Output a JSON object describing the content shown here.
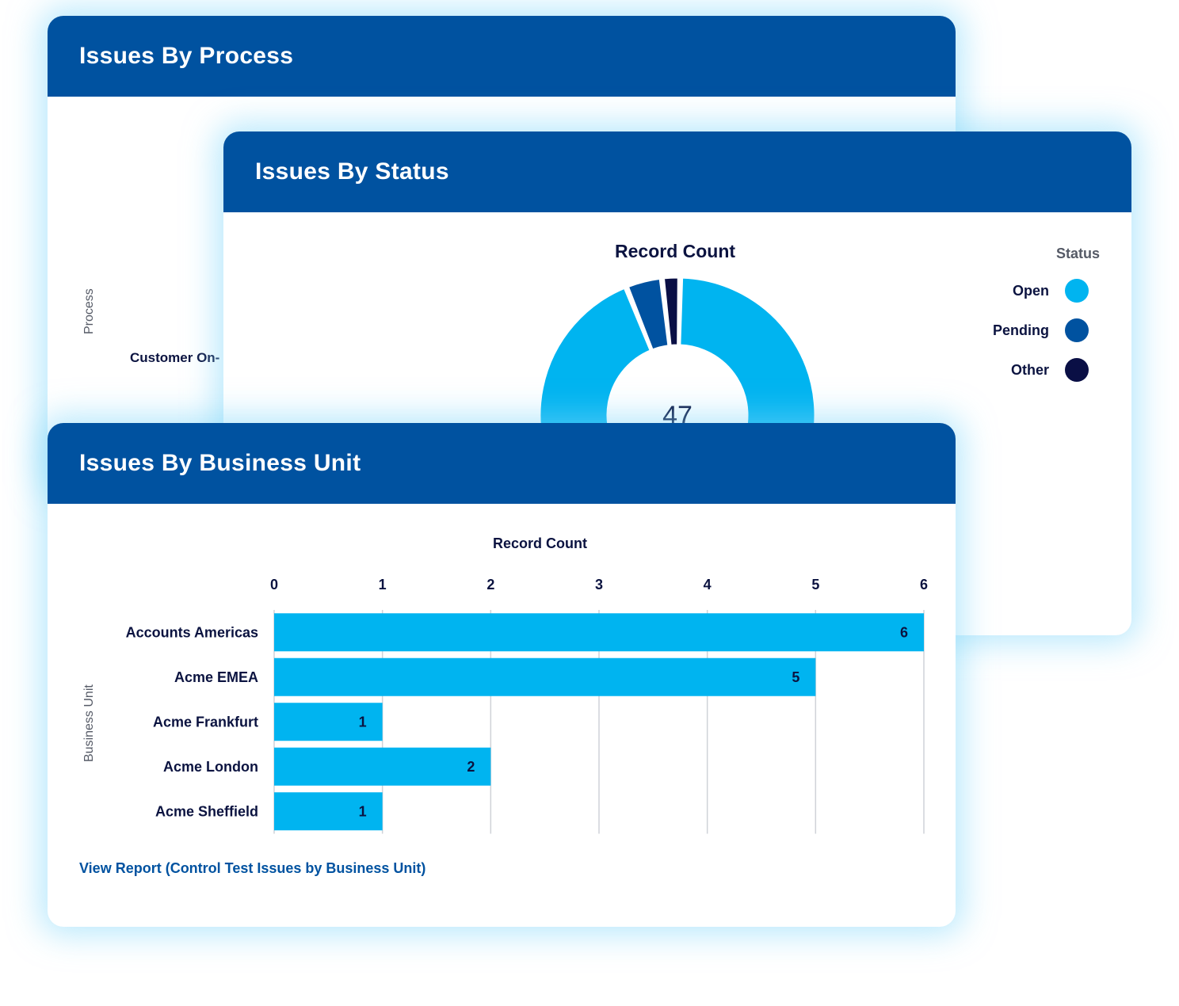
{
  "cards": {
    "process": {
      "title": "Issues By Process",
      "y_axis_label": "Process",
      "row_label": "Customer On-"
    },
    "status": {
      "title": "Issues By Status",
      "legend_title": "Status",
      "center_total": "47"
    },
    "business_unit": {
      "title": "Issues By Business Unit",
      "y_axis_label": "Business Unit",
      "report_link": "View Report (Control Test Issues by Business Unit)"
    }
  },
  "colors": {
    "header": "#0052a0",
    "open": "#00b4f0",
    "pending": "#0052a0",
    "other": "#0a0f45",
    "bar": "#00b4f0"
  },
  "chart_data": [
    {
      "type": "pie",
      "title": "Record Count",
      "total": 47,
      "series": [
        {
          "name": "Open",
          "value": 44
        },
        {
          "name": "Pending",
          "value": 2
        },
        {
          "name": "Other",
          "value": 1
        }
      ],
      "legend": "right"
    },
    {
      "type": "bar",
      "orientation": "horizontal",
      "xlabel": "Record Count",
      "ylabel": "Business Unit",
      "categories": [
        "Accounts Americas",
        "Acme EMEA",
        "Acme Frankfurt",
        "Acme London",
        "Acme Sheffield"
      ],
      "values": [
        6,
        5,
        1,
        2,
        1
      ],
      "xlim": [
        0,
        6
      ],
      "xticks": [
        "0",
        "1",
        "2",
        "3",
        "4",
        "5",
        "6"
      ],
      "grid": true
    }
  ]
}
